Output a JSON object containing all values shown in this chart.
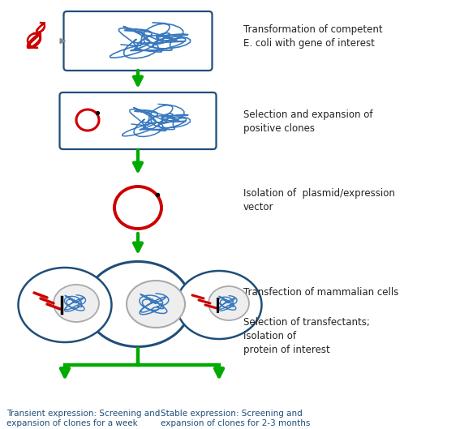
{
  "background_color": "#ffffff",
  "green": "#00aa00",
  "dark_blue": "#1f4e79",
  "blue": "#2e75b6",
  "red": "#cc0000",
  "gray_edge": "#aaaaaa",
  "gray_fill": "#eeeeee",
  "label_color": "#222222",
  "blue_label": "#1f4e79",
  "label1": "Transformation of competent\nE. coli with gene of interest",
  "label2": "Selection and expansion of\npositive clones",
  "label3": "Isolation of  plasmid/expression\nvector",
  "label4": "Transfection of mammalian cells",
  "label5": "Selection of transfectants;\nisolation of\nprotein of interest",
  "label6": "Transient expression: Screening and\nexpansion of clones for a week",
  "label7": "Stable expression: Screening and\nexpansion of clones for 2-3 months"
}
